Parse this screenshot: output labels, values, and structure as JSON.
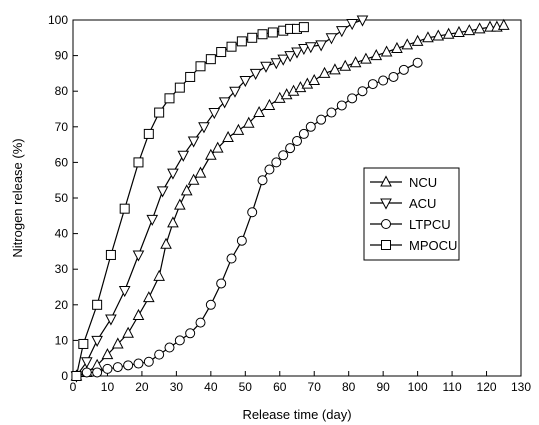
{
  "chart_data": {
    "type": "line",
    "xlabel": "Release time (day)",
    "ylabel": "Nitrogen release (%)",
    "xlim": [
      0,
      130
    ],
    "ylim": [
      0,
      100
    ],
    "xticks": [
      "0",
      "10",
      "20",
      "30",
      "40",
      "50",
      "60",
      "70",
      "80",
      "90",
      "100",
      "110",
      "120",
      "130"
    ],
    "yticks": [
      "0",
      "10",
      "20",
      "30",
      "40",
      "50",
      "60",
      "70",
      "80",
      "90",
      "100"
    ],
    "grid": false,
    "legend_position": "right-middle",
    "line_color": "#000000",
    "series": [
      {
        "name": "NCU",
        "marker": "triangle-up",
        "x": [
          1,
          4,
          7,
          10,
          13,
          16,
          19,
          22,
          25,
          27,
          29,
          31,
          33,
          35,
          37,
          40,
          42,
          45,
          48,
          51,
          54,
          57,
          60,
          62,
          64,
          66,
          68,
          70,
          73,
          76,
          79,
          82,
          85,
          88,
          91,
          94,
          97,
          100,
          103,
          106,
          109,
          112,
          115,
          118,
          121,
          123,
          125
        ],
        "y": [
          0,
          1,
          3,
          6,
          9,
          12,
          17,
          22,
          28,
          37,
          43,
          48,
          52,
          55,
          57,
          62,
          64,
          67,
          69,
          71,
          74,
          76,
          78,
          79,
          80,
          81,
          82,
          83,
          85,
          86,
          87,
          88,
          89,
          90,
          91,
          92,
          93,
          94,
          95,
          95.5,
          96,
          96.5,
          97,
          97.5,
          98,
          98,
          98.5
        ]
      },
      {
        "name": "ACU",
        "marker": "triangle-down",
        "x": [
          1,
          4,
          7,
          11,
          15,
          19,
          23,
          26,
          29,
          32,
          35,
          38,
          41,
          44,
          47,
          50,
          53,
          56,
          59,
          61,
          63,
          65,
          67,
          69,
          72,
          75,
          78,
          81,
          84
        ],
        "y": [
          0,
          4,
          10,
          16,
          24,
          34,
          44,
          52,
          57,
          62,
          66,
          70,
          74,
          77,
          80,
          83,
          85,
          87,
          88,
          89,
          90,
          91,
          92,
          92.5,
          93,
          95,
          97,
          99,
          100
        ]
      },
      {
        "name": "LTPCU",
        "marker": "circle",
        "x": [
          1,
          4,
          7,
          10,
          13,
          16,
          19,
          22,
          25,
          28,
          31,
          34,
          37,
          40,
          43,
          46,
          49,
          52,
          55,
          57,
          59,
          61,
          63,
          65,
          67,
          69,
          72,
          75,
          78,
          81,
          84,
          87,
          90,
          93,
          96,
          100
        ],
        "y": [
          0,
          1,
          1,
          2,
          2.5,
          3,
          3.5,
          4,
          6,
          8,
          10,
          12,
          15,
          20,
          26,
          33,
          38,
          46,
          55,
          58,
          60,
          62,
          64,
          66,
          68,
          70,
          72,
          74,
          76,
          78,
          80,
          82,
          83,
          84,
          86,
          88
        ]
      },
      {
        "name": "MPOCU",
        "marker": "square",
        "x": [
          1,
          3,
          7,
          11,
          15,
          19,
          22,
          25,
          28,
          31,
          34,
          37,
          40,
          43,
          46,
          49,
          52,
          55,
          58,
          61,
          63,
          65,
          67
        ],
        "y": [
          0,
          9,
          20,
          34,
          47,
          60,
          68,
          74,
          78,
          81,
          84,
          87,
          89,
          91,
          92.5,
          94,
          95,
          96,
          96.5,
          97,
          97.5,
          97.5,
          98
        ]
      }
    ]
  }
}
